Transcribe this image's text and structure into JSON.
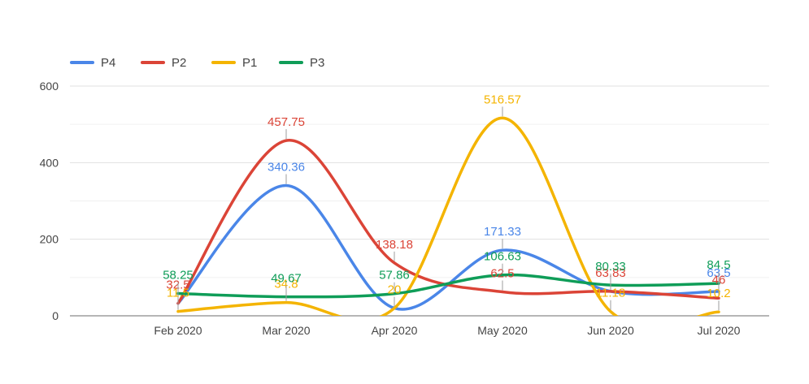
{
  "chart_data": {
    "type": "line",
    "categories": [
      "Feb 2020",
      "Mar 2020",
      "Apr 2020",
      "May 2020",
      "Jun 2020",
      "Jul 2020"
    ],
    "ylim": [
      0,
      600
    ],
    "yticks": [
      "0",
      "200",
      "400",
      "600"
    ],
    "legend_position": "top-left",
    "grid": true,
    "smooth": true,
    "series": [
      {
        "name": "P4",
        "color": "#4a86e8",
        "values": [
          32.5,
          340.36,
          20,
          171.33,
          63.83,
          63.5
        ],
        "labels": [
          "",
          "340.36",
          "",
          "171.33",
          "",
          "63.5"
        ]
      },
      {
        "name": "P2",
        "color": "#db4437",
        "values": [
          32.5,
          457.75,
          138.18,
          62.5,
          63.83,
          46
        ],
        "labels": [
          "32.5",
          "457.75",
          "138.18",
          "62.5",
          "63.83",
          "46"
        ]
      },
      {
        "name": "P1",
        "color": "#f4b400",
        "values": [
          11.5,
          34.8,
          20,
          516.57,
          11.18,
          10.2
        ],
        "labels": [
          "11.5",
          "34.8",
          "20",
          "516.57",
          "11.18",
          "10.2"
        ]
      },
      {
        "name": "P3",
        "color": "#0f9d58",
        "values": [
          58.25,
          49.67,
          57.86,
          106.63,
          80.33,
          84.5
        ],
        "labels": [
          "58.25",
          "49.67",
          "57.86",
          "106.63",
          "80.33",
          "84.5"
        ]
      }
    ]
  }
}
